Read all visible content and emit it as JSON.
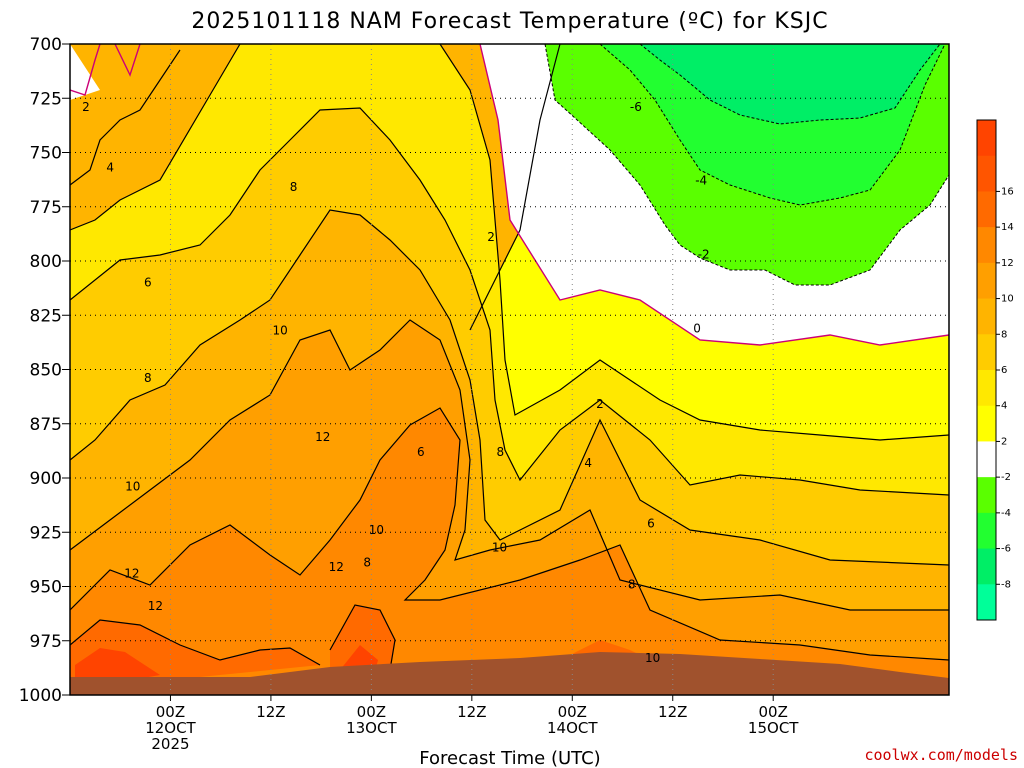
{
  "chart_data": {
    "type": "heatmap",
    "title": "2025101118 NAM Forecast Temperature (ºC) for KSJC",
    "xlabel": "Forecast Time (UTC)",
    "ylabel": "",
    "credit": "coolwx.com/models",
    "y_axis": {
      "unit": "hPa",
      "ticks": [
        "700",
        "725",
        "750",
        "775",
        "800",
        "825",
        "850",
        "875",
        "900",
        "925",
        "950",
        "975",
        "1000"
      ],
      "range": [
        700,
        1000
      ]
    },
    "x_axis": {
      "hours_range": [
        -6,
        99
      ],
      "ticks": [
        {
          "hour": 6,
          "line1": "00Z",
          "line2": "12OCT",
          "line3": "2025"
        },
        {
          "hour": 18,
          "line1": "12Z",
          "line2": "",
          "line3": ""
        },
        {
          "hour": 30,
          "line1": "00Z",
          "line2": "13OCT",
          "line3": ""
        },
        {
          "hour": 42,
          "line1": "12Z",
          "line2": "",
          "line3": ""
        },
        {
          "hour": 54,
          "line1": "00Z",
          "line2": "14OCT",
          "line3": ""
        },
        {
          "hour": 66,
          "line1": "12Z",
          "line2": "",
          "line3": ""
        },
        {
          "hour": 78,
          "line1": "00Z",
          "line2": "15OCT",
          "line3": ""
        }
      ]
    },
    "contour_levels": [
      -8,
      -6,
      -4,
      -2,
      0,
      2,
      4,
      6,
      8,
      10,
      12,
      14,
      16
    ],
    "contour_labels": [
      {
        "text": "2",
        "hour": -4.1,
        "p": 729
      },
      {
        "text": "4",
        "hour": -1.2,
        "p": 757
      },
      {
        "text": "6",
        "hour": 3.3,
        "p": 810
      },
      {
        "text": "8",
        "hour": 3.3,
        "p": 854
      },
      {
        "text": "10",
        "hour": 1.5,
        "p": 904
      },
      {
        "text": "12",
        "hour": 1.4,
        "p": 944
      },
      {
        "text": "12",
        "hour": 4.2,
        "p": 959
      },
      {
        "text": "8",
        "hour": 20.7,
        "p": 766
      },
      {
        "text": "10",
        "hour": 19.1,
        "p": 832
      },
      {
        "text": "12",
        "hour": 24.2,
        "p": 881
      },
      {
        "text": "12",
        "hour": 25.8,
        "p": 941
      },
      {
        "text": "10",
        "hour": 30.6,
        "p": 924
      },
      {
        "text": "8",
        "hour": 29.5,
        "p": 939
      },
      {
        "text": "6",
        "hour": 35.9,
        "p": 888
      },
      {
        "text": "2",
        "hour": 44.3,
        "p": 789
      },
      {
        "text": "8",
        "hour": 45.4,
        "p": 888
      },
      {
        "text": "10",
        "hour": 45.3,
        "p": 932
      },
      {
        "text": "-6",
        "hour": 61.6,
        "p": 729
      },
      {
        "text": "-4",
        "hour": 69.4,
        "p": 763
      },
      {
        "text": "-2",
        "hour": 69.7,
        "p": 797
      },
      {
        "text": "0",
        "hour": 68.9,
        "p": 831
      },
      {
        "text": "2",
        "hour": 57.3,
        "p": 866
      },
      {
        "text": "4",
        "hour": 55.9,
        "p": 893
      },
      {
        "text": "6",
        "hour": 63.4,
        "p": 921
      },
      {
        "text": "8",
        "hour": 61.1,
        "p": 949
      },
      {
        "text": "10",
        "hour": 63.6,
        "p": 983
      }
    ],
    "colorbar": [
      {
        "label": "",
        "color": "#ff4400"
      },
      {
        "label": "16",
        "color": "#ff5500"
      },
      {
        "label": "14",
        "color": "#ff6a00"
      },
      {
        "label": "12",
        "color": "#ff8800"
      },
      {
        "label": "10",
        "color": "#ff9f00"
      },
      {
        "label": "8",
        "color": "#ffb400"
      },
      {
        "label": "6",
        "color": "#ffcc00"
      },
      {
        "label": "4",
        "color": "#ffe800"
      },
      {
        "label": "2",
        "color": "#ffff00"
      },
      {
        "label": "-2",
        "color": "#ffffff"
      },
      {
        "label": "-4",
        "color": "#5aff00"
      },
      {
        "label": "-6",
        "color": "#22ff30"
      },
      {
        "label": "-8",
        "color": "#00ee66"
      },
      {
        "label": "",
        "color": "#00ff99"
      }
    ],
    "grid": true,
    "legend": "right colorbar"
  }
}
